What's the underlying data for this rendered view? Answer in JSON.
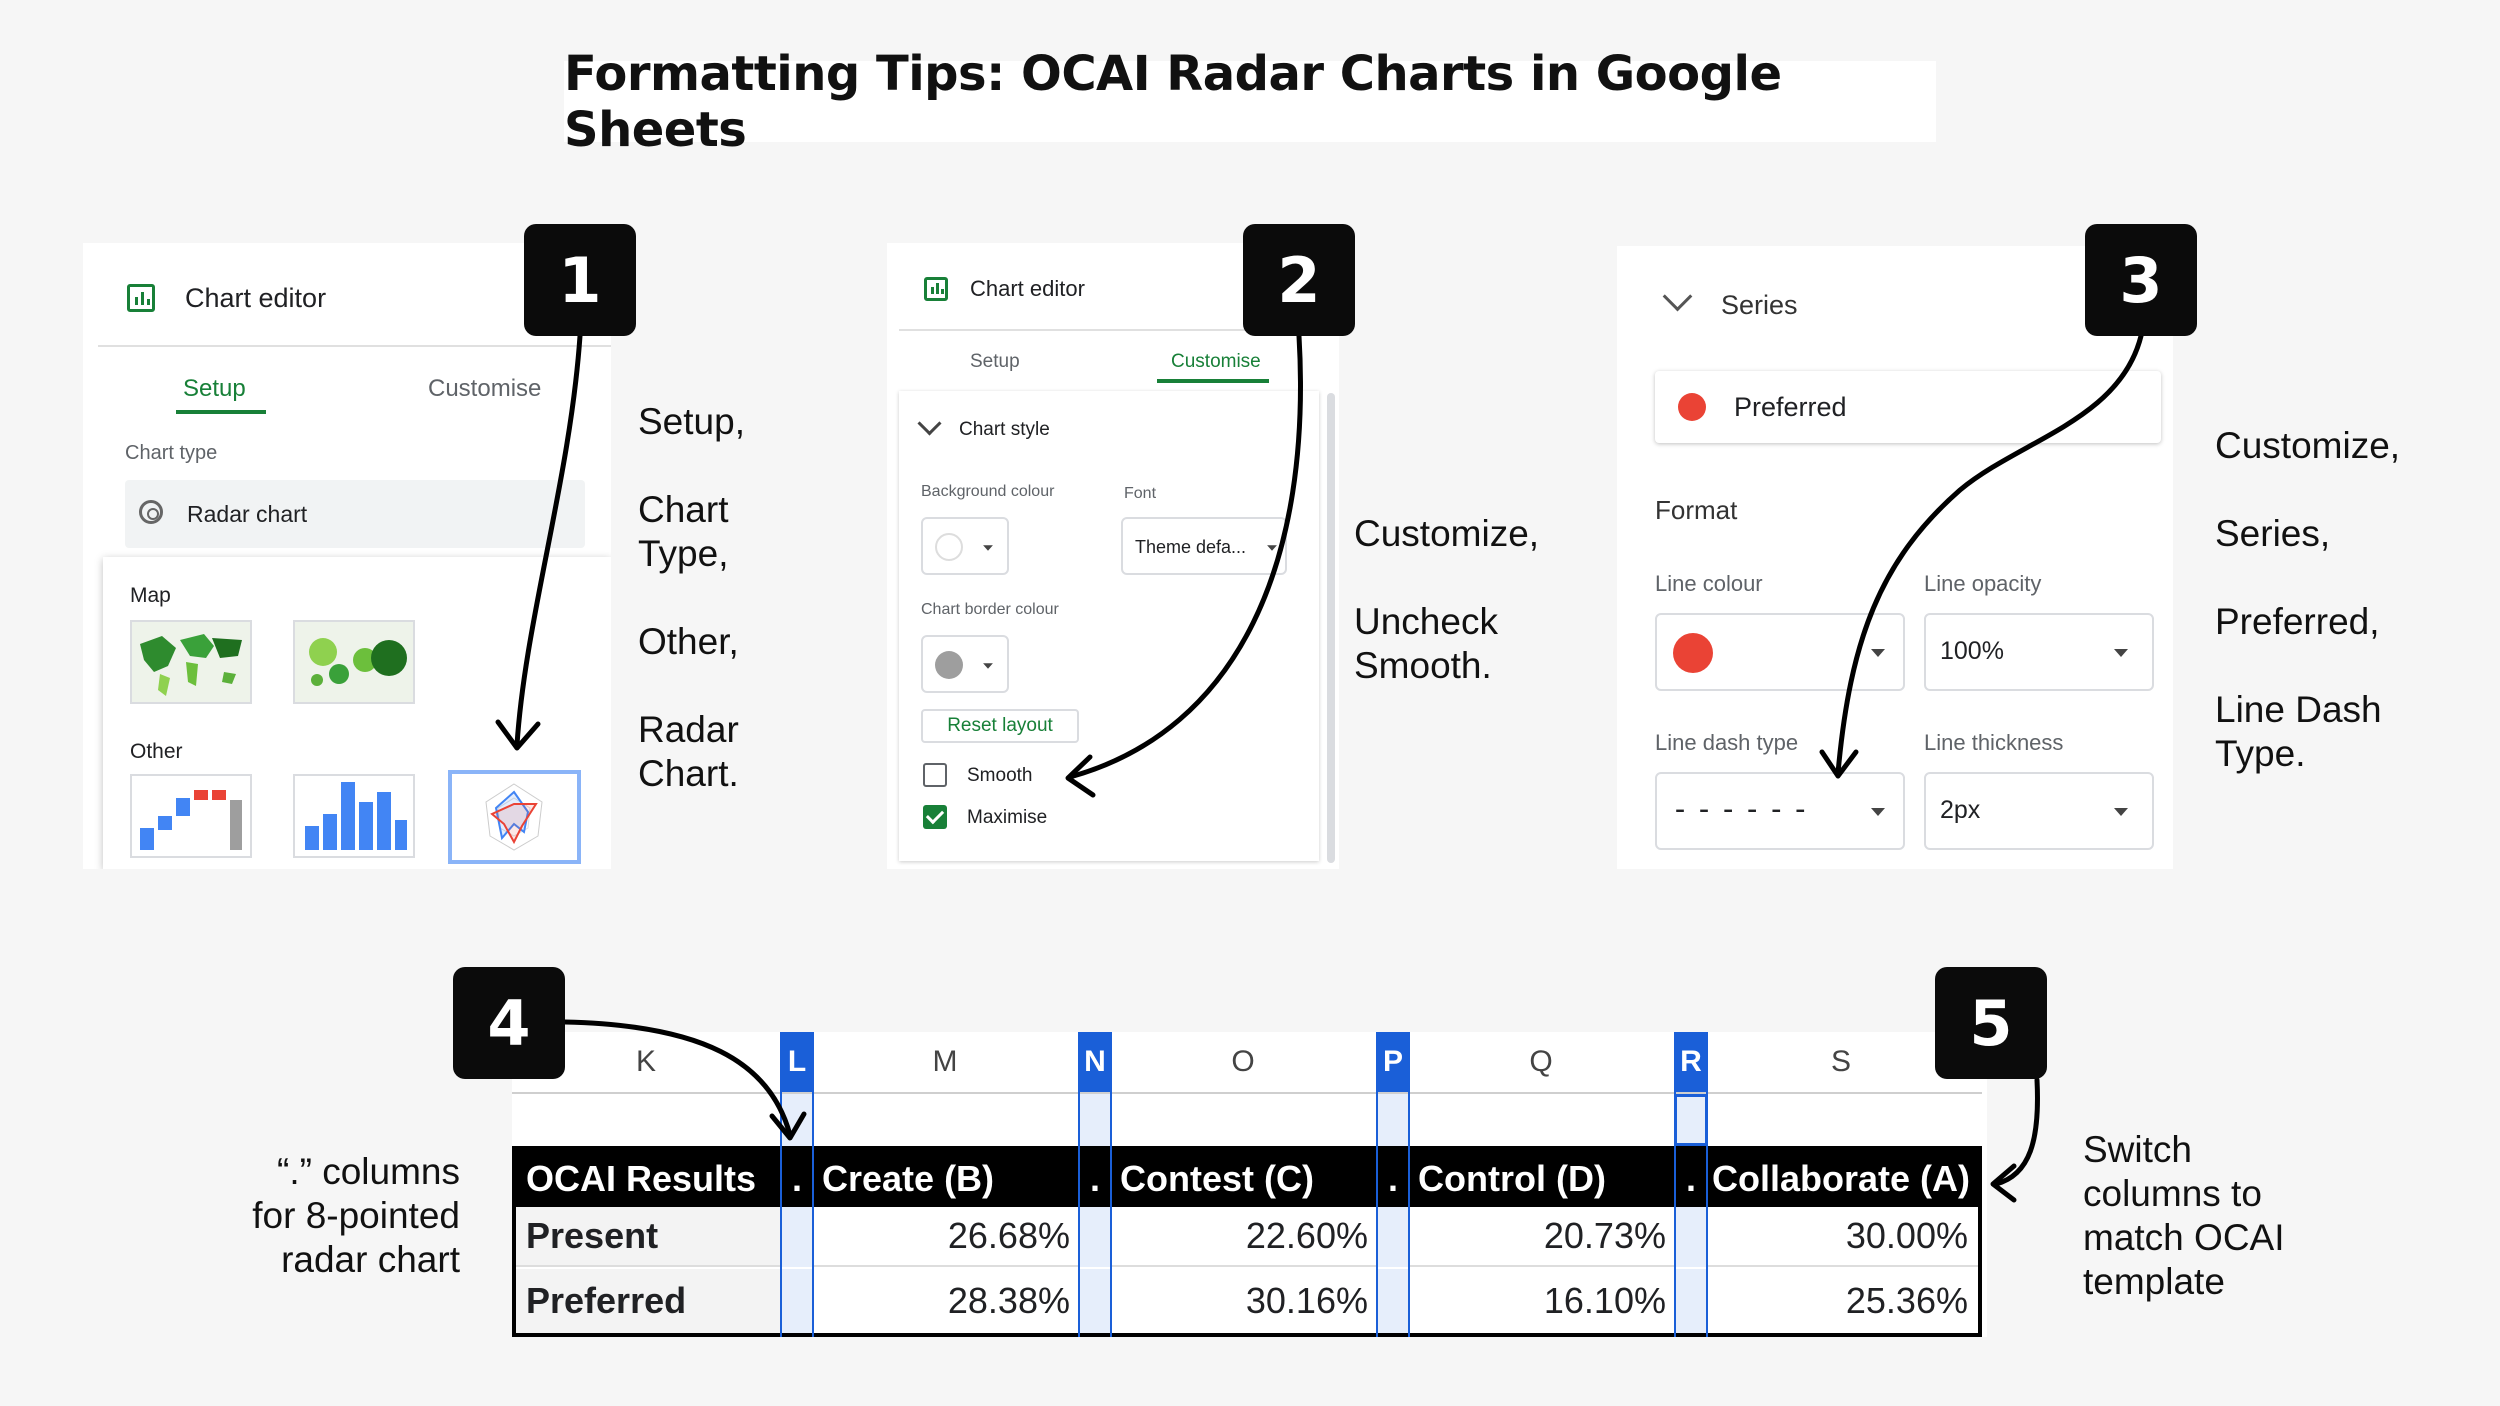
{
  "title": "Formatting Tips: OCAI Radar Charts in Google Sheets",
  "badges": [
    "1",
    "2",
    "3",
    "4",
    "5"
  ],
  "panel1": {
    "header": "Chart editor",
    "tabs": [
      "Setup",
      "Customise"
    ],
    "chart_type_label": "Chart type",
    "chart_type_value": "Radar chart",
    "section_map": "Map",
    "section_other": "Other"
  },
  "panel2": {
    "header": "Chart editor",
    "tabs": [
      "Setup",
      "Customise"
    ],
    "section": "Chart style",
    "bg_label": "Background colour",
    "font_label": "Font",
    "font_value": "Theme defa...",
    "border_label": "Chart border colour",
    "reset": "Reset layout",
    "smooth": "Smooth",
    "maximise": "Maximise"
  },
  "panel3": {
    "section": "Series",
    "series_value": "Preferred",
    "format": "Format",
    "line_colour": "Line colour",
    "line_opacity": "Line opacity",
    "opacity_value": "100%",
    "dash_label": "Line dash type",
    "dash_value": "------",
    "thickness_label": "Line thickness",
    "thickness_value": "2px"
  },
  "notes": {
    "n1": [
      "Setup,",
      "Chart",
      "Type,",
      "Other,",
      "Radar",
      "Chart."
    ],
    "n2": [
      "Customize,",
      "Uncheck",
      "Smooth."
    ],
    "n3": [
      "Customize,",
      "Series,",
      "Preferred,",
      "Line Dash",
      "Type."
    ],
    "n4": [
      "“.” columns",
      "for 8-pointed",
      "radar chart"
    ],
    "n5": [
      "Switch",
      "columns to",
      "match OCAI",
      "template"
    ]
  },
  "sheet": {
    "columns": [
      "K",
      "L",
      "M",
      "N",
      "O",
      "P",
      "Q",
      "R",
      "S"
    ],
    "header_row": [
      "OCAI Results",
      ".",
      "Create (B)",
      ".",
      "Contest (C)",
      ".",
      "Control (D)",
      ".",
      "Collaborate (A)"
    ],
    "rows": [
      [
        "Present",
        "",
        "26.68%",
        "",
        "22.60%",
        "",
        "20.73%",
        "",
        "30.00%"
      ],
      [
        "Preferred",
        "",
        "28.38%",
        "",
        "30.16%",
        "",
        "16.10%",
        "",
        "25.36%"
      ]
    ]
  },
  "colors": {
    "accent_green": "#188038",
    "selected_blue": "#1a5fd8",
    "series_red": "#ea4335"
  }
}
